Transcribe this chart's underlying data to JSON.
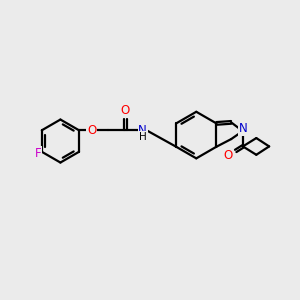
{
  "bg_color": "#ebebeb",
  "bond_color": "#000000",
  "o_color": "#ff0000",
  "n_color": "#0000cc",
  "f_color": "#cc00cc",
  "line_width": 1.6,
  "double_sep": 0.08,
  "figsize": [
    3.0,
    3.0
  ],
  "dpi": 100,
  "xlim": [
    0,
    10
  ],
  "ylim": [
    0,
    10
  ]
}
